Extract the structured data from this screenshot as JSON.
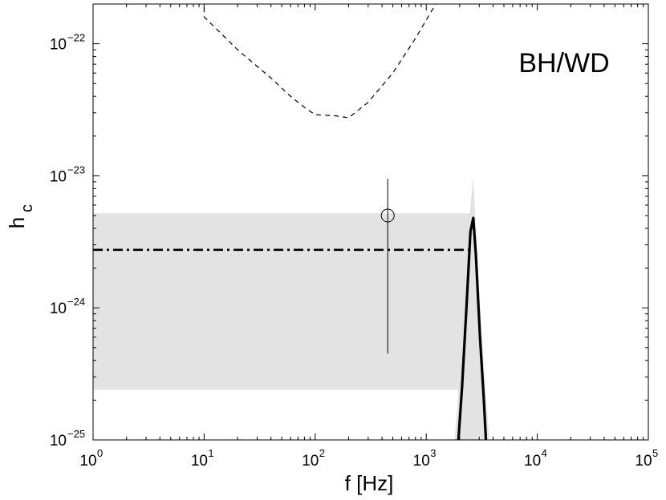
{
  "chart_data": {
    "type": "line",
    "title": "",
    "annotation": "BH/WD",
    "xlabel": "f [Hz]",
    "ylabel_main": "h",
    "ylabel_sub": "c",
    "x_scale": "log",
    "y_scale": "log",
    "xlim": [
      1,
      100000
    ],
    "ylim": [
      1e-25,
      2e-22
    ],
    "grid": false,
    "legend": "none",
    "x_ticks": [
      {
        "value": 1,
        "base": "10",
        "exp": "0"
      },
      {
        "value": 10,
        "base": "10",
        "exp": "1"
      },
      {
        "value": 100,
        "base": "10",
        "exp": "2"
      },
      {
        "value": 1000,
        "base": "10",
        "exp": "3"
      },
      {
        "value": 10000,
        "base": "10",
        "exp": "4"
      },
      {
        "value": 100000,
        "base": "10",
        "exp": "5"
      }
    ],
    "y_ticks": [
      {
        "value": 1e-25,
        "base": "10",
        "exp": "−25"
      },
      {
        "value": 1e-24,
        "base": "10",
        "exp": "−24"
      },
      {
        "value": 1e-23,
        "base": "10",
        "exp": "−23"
      },
      {
        "value": 1e-22,
        "base": "10",
        "exp": "−22"
      }
    ],
    "shaded_band": {
      "x": [
        1,
        2500
      ],
      "y": [
        2.4e-25,
        5.2e-24
      ],
      "color": "#e3e3e3"
    },
    "series": [
      {
        "style": "dashed",
        "color": "#000000",
        "points": [
          [
            10,
            2.2e-22
          ],
          [
            10,
            1.6e-22
          ],
          [
            20,
            9e-23
          ],
          [
            40,
            5.5e-23
          ],
          [
            60,
            4e-23
          ],
          [
            80,
            3.3e-23
          ],
          [
            100,
            2.9e-23
          ],
          [
            150,
            2.85e-23
          ],
          [
            200,
            2.75e-23
          ],
          [
            300,
            3.6e-23
          ],
          [
            500,
            6e-23
          ],
          [
            800,
            1.1e-22
          ],
          [
            1300,
            2.2e-22
          ]
        ]
      },
      {
        "style": "dash-dot",
        "color": "#000000",
        "points": [
          [
            1,
            2.75e-24
          ],
          [
            2500,
            2.75e-24
          ]
        ]
      },
      {
        "style": "solid",
        "color": "#000000",
        "points": [
          [
            1950,
            1e-25
          ],
          [
            2100,
            2.5e-25
          ],
          [
            2300,
            1e-24
          ],
          [
            2500,
            3.8e-24
          ],
          [
            2650,
            4.8e-24
          ],
          [
            2800,
            2.5e-24
          ],
          [
            3050,
            6e-25
          ],
          [
            3300,
            2e-25
          ],
          [
            3450,
            1e-25
          ]
        ]
      }
    ],
    "peak_band": {
      "color": "#e3e3e3",
      "points": [
        [
          1800,
          1e-25
        ],
        [
          2000,
          3e-25
        ],
        [
          2300,
          1.5e-24
        ],
        [
          2500,
          6e-24
        ],
        [
          2650,
          9.8e-24
        ],
        [
          2800,
          4e-24
        ],
        [
          3050,
          1e-24
        ],
        [
          3400,
          2.5e-25
        ],
        [
          3700,
          1e-25
        ]
      ]
    },
    "errorbar_point": {
      "x": 450,
      "y": 5e-24,
      "ylow": 4.5e-25,
      "yhigh": 9.5e-24
    }
  }
}
